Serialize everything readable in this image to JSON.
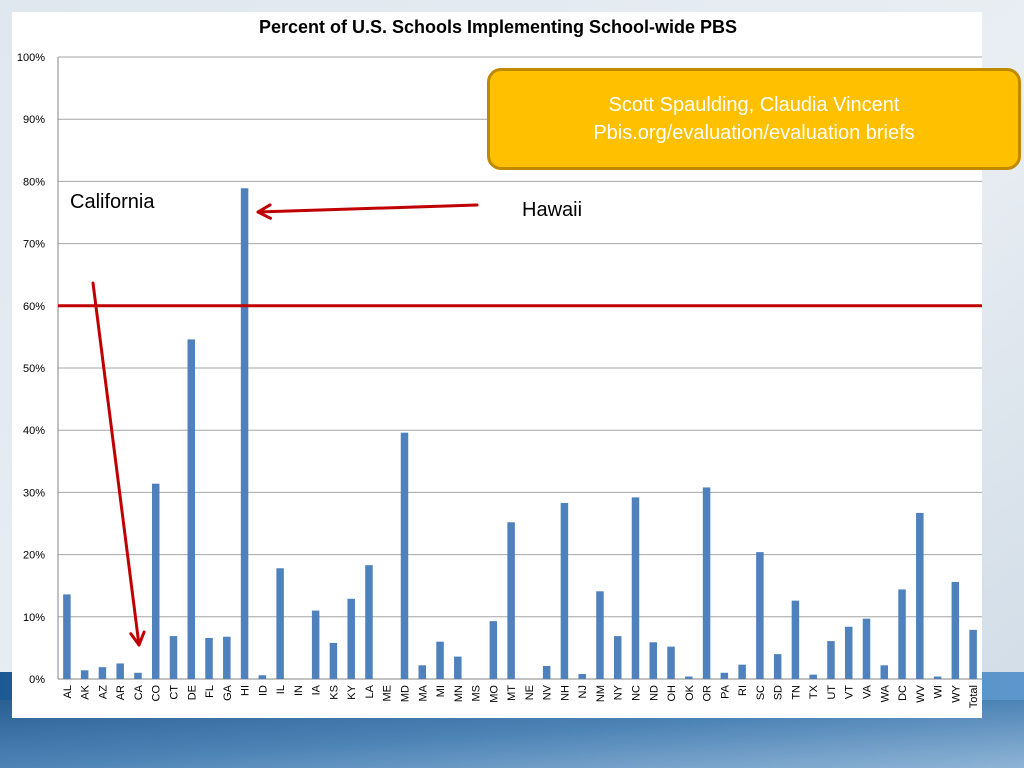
{
  "colors": {
    "bar": "#4f81bd",
    "threshold_line": "#c00000",
    "arrow": "#c00000",
    "callout_fill": "#ffc000",
    "callout_border": "#c08a00",
    "callout_text": "#ffffff",
    "slide_background": "#2f6fa8"
  },
  "callout": {
    "line1": "Scott Spaulding, Claudia Vincent",
    "line2": "Pbis.org/evaluation/evaluation briefs"
  },
  "annotations": {
    "california": "California",
    "hawaii": "Hawaii"
  },
  "chart_data": {
    "type": "bar",
    "title": "Percent of U.S. Schools Implementing School-wide PBS",
    "xlabel": "",
    "ylabel": "",
    "ylim": [
      0,
      100
    ],
    "y_ticks": [
      "0%",
      "10%",
      "20%",
      "30%",
      "40%",
      "50%",
      "60%",
      "70%",
      "80%",
      "90%",
      "100%"
    ],
    "grid": true,
    "legend": "none",
    "reference_line": 60,
    "categories": [
      "AL",
      "AK",
      "AZ",
      "AR",
      "CA",
      "CO",
      "CT",
      "DE",
      "FL",
      "GA",
      "HI",
      "ID",
      "IL",
      "IN",
      "IA",
      "KS",
      "KY",
      "LA",
      "ME",
      "MD",
      "MA",
      "MI",
      "MN",
      "MS",
      "MO",
      "MT",
      "NE",
      "NV",
      "NH",
      "NJ",
      "NM",
      "NY",
      "NC",
      "ND",
      "OH",
      "OK",
      "OR",
      "PA",
      "RI",
      "SC",
      "SD",
      "TN",
      "TX",
      "UT",
      "VT",
      "VA",
      "WA",
      "DC",
      "WV",
      "WI",
      "WY",
      "Total"
    ],
    "values": [
      13.6,
      1.4,
      1.9,
      2.5,
      1.0,
      31.4,
      6.9,
      54.6,
      6.6,
      6.8,
      78.9,
      0.6,
      17.8,
      0,
      11.0,
      5.8,
      12.9,
      18.3,
      0,
      39.6,
      2.2,
      6.0,
      3.6,
      0,
      9.3,
      25.2,
      0,
      2.1,
      28.3,
      0.8,
      14.1,
      6.9,
      29.2,
      5.9,
      5.2,
      0.4,
      30.8,
      1.0,
      2.3,
      20.4,
      4.0,
      12.6,
      0.7,
      6.1,
      8.4,
      9.7,
      2.2,
      14.4,
      26.7,
      0.4,
      15.6,
      7.9
    ]
  }
}
